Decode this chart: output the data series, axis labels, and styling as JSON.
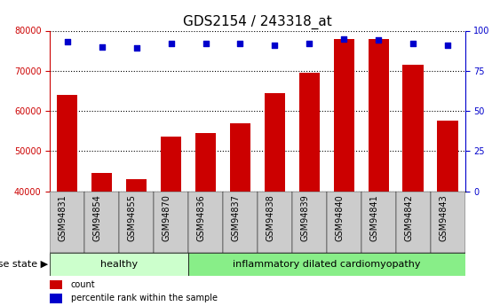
{
  "title": "GDS2154 / 243318_at",
  "samples": [
    "GSM94831",
    "GSM94854",
    "GSM94855",
    "GSM94870",
    "GSM94836",
    "GSM94837",
    "GSM94838",
    "GSM94839",
    "GSM94840",
    "GSM94841",
    "GSM94842",
    "GSM94843"
  ],
  "counts": [
    64000,
    44500,
    43000,
    53500,
    54500,
    57000,
    64500,
    69500,
    78000,
    78000,
    71500,
    57500
  ],
  "percentiles": [
    93,
    90,
    89,
    92,
    92,
    92,
    91,
    92,
    95,
    94,
    92,
    91
  ],
  "disease_groups": [
    "healthy",
    "inflammatory dilated cardiomyopathy"
  ],
  "disease_group_counts": [
    4,
    8
  ],
  "ylim_left": [
    40000,
    80000
  ],
  "ylim_right": [
    0,
    100
  ],
  "yticks_left": [
    40000,
    50000,
    60000,
    70000,
    80000
  ],
  "yticks_right": [
    0,
    25,
    50,
    75,
    100
  ],
  "bar_color": "#cc0000",
  "dot_color": "#0000cc",
  "healthy_bg": "#ccffcc",
  "disease_bg": "#88ee88",
  "xlabel_bg": "#cccccc",
  "legend_count_label": "count",
  "legend_pct_label": "percentile rank within the sample",
  "disease_state_label": "disease state",
  "title_fontsize": 11,
  "tick_fontsize": 7,
  "label_fontsize": 8,
  "axis_label_fontsize": 7
}
